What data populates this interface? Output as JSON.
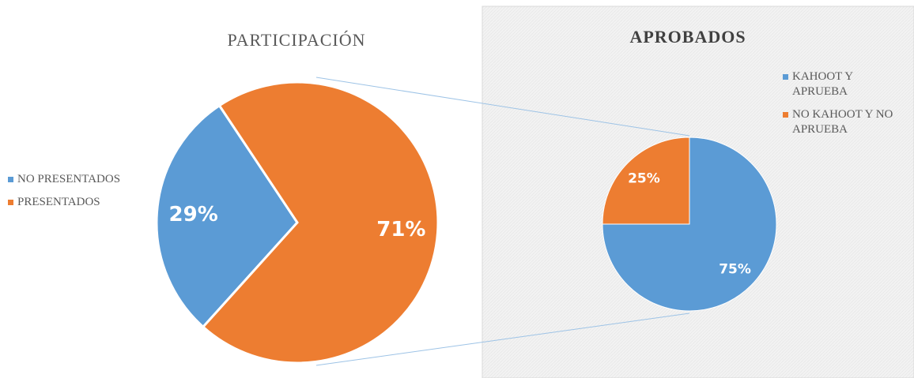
{
  "chart_data": [
    {
      "type": "pie",
      "title": "PARTICIPACIÓN",
      "categories": [
        "NO PRESENTADOS",
        "PRESENTADOS"
      ],
      "values": [
        29,
        71
      ],
      "value_labels": [
        "29%",
        "71%"
      ],
      "colors": [
        "#5b9bd5",
        "#ed7d31"
      ],
      "legend": "left"
    },
    {
      "type": "pie",
      "title": "APROBADOS",
      "categories": [
        "KAHOOT Y APRUEBA",
        "NO KAHOOT Y NO APRUEBA"
      ],
      "values": [
        75,
        25
      ],
      "value_labels": [
        "75%",
        "25%"
      ],
      "colors": [
        "#5b9bd5",
        "#ed7d31"
      ],
      "legend": "top-right"
    }
  ]
}
